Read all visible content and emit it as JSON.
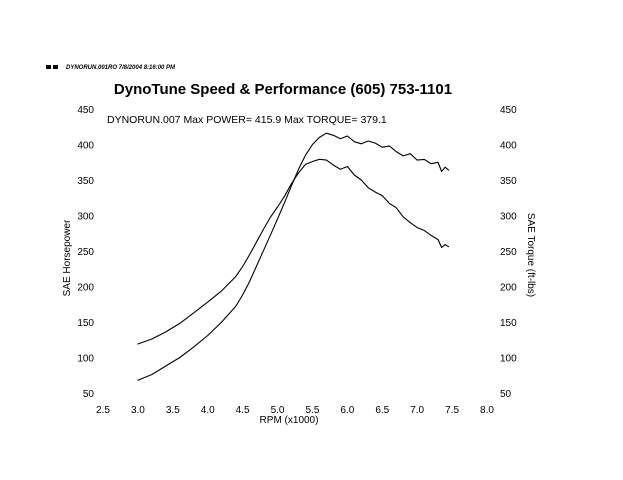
{
  "header": {
    "file_info": "DYNORUN.001RO  7/8/2004 8:16:00 PM"
  },
  "chart_data": {
    "type": "line",
    "title": "DynoTune Speed & Performance  (605) 753-1101",
    "subtitle": "DYNORUN.007  Max POWER= 415.9  Max TORQUE= 379.1",
    "xlabel": "RPM (x1000)",
    "ylabel_left": "SAE Horsepower",
    "ylabel_right": "SAE Torque (ft-lbs)",
    "xlim": [
      2.5,
      8.0
    ],
    "ylim": [
      50,
      450
    ],
    "xticks": [
      "2.5",
      "3.0",
      "3.5",
      "4.0",
      "4.5",
      "5.0",
      "5.5",
      "6.0",
      "6.5",
      "7.0",
      "7.5",
      "8.0"
    ],
    "yticks_left": [
      "450",
      "400",
      "350",
      "300",
      "250",
      "200",
      "150",
      "100",
      "50"
    ],
    "yticks_right": [
      "450",
      "400",
      "350",
      "300",
      "250",
      "200",
      "150",
      "100",
      "50"
    ],
    "grid": false,
    "line_color": "#000000",
    "series": [
      {
        "x": [
          3.0,
          3.2,
          3.4,
          3.6,
          3.8,
          4.0,
          4.2,
          4.4,
          4.5,
          4.6,
          4.7,
          4.8,
          4.9,
          5.0,
          5.1,
          5.2,
          5.3,
          5.4,
          5.5,
          5.6,
          5.7,
          5.8,
          5.9,
          6.0,
          6.1,
          6.2,
          6.3,
          6.4,
          6.5,
          6.6,
          6.7,
          6.8,
          6.9,
          7.0,
          7.1,
          7.2,
          7.3,
          7.35,
          7.4,
          7.45
        ],
        "values": [
          68,
          76,
          88,
          100,
          115,
          131,
          150,
          172,
          188,
          207,
          229,
          251,
          273,
          295,
          318,
          342,
          365,
          385,
          400,
          410,
          415.9,
          413,
          408,
          412,
          404,
          401,
          405,
          402,
          396,
          398,
          390,
          384,
          387,
          378,
          379,
          373,
          375,
          362,
          368,
          364
        ]
      },
      {
        "x": [
          3.0,
          3.2,
          3.4,
          3.6,
          3.8,
          4.0,
          4.2,
          4.4,
          4.5,
          4.6,
          4.7,
          4.8,
          4.9,
          5.0,
          5.1,
          5.2,
          5.3,
          5.4,
          5.5,
          5.6,
          5.7,
          5.8,
          5.9,
          6.0,
          6.1,
          6.2,
          6.3,
          6.4,
          6.5,
          6.6,
          6.7,
          6.8,
          6.9,
          7.0,
          7.1,
          7.2,
          7.3,
          7.35,
          7.4,
          7.45
        ],
        "values": [
          119,
          126,
          136,
          148,
          163,
          178,
          194,
          214,
          228,
          245,
          263,
          281,
          298,
          312,
          327,
          345,
          360,
          372,
          376,
          379.1,
          378,
          371,
          365,
          369,
          357,
          350,
          339,
          333,
          328,
          317,
          311,
          298,
          290,
          283,
          279,
          272,
          266,
          255,
          259,
          256
        ]
      }
    ]
  }
}
